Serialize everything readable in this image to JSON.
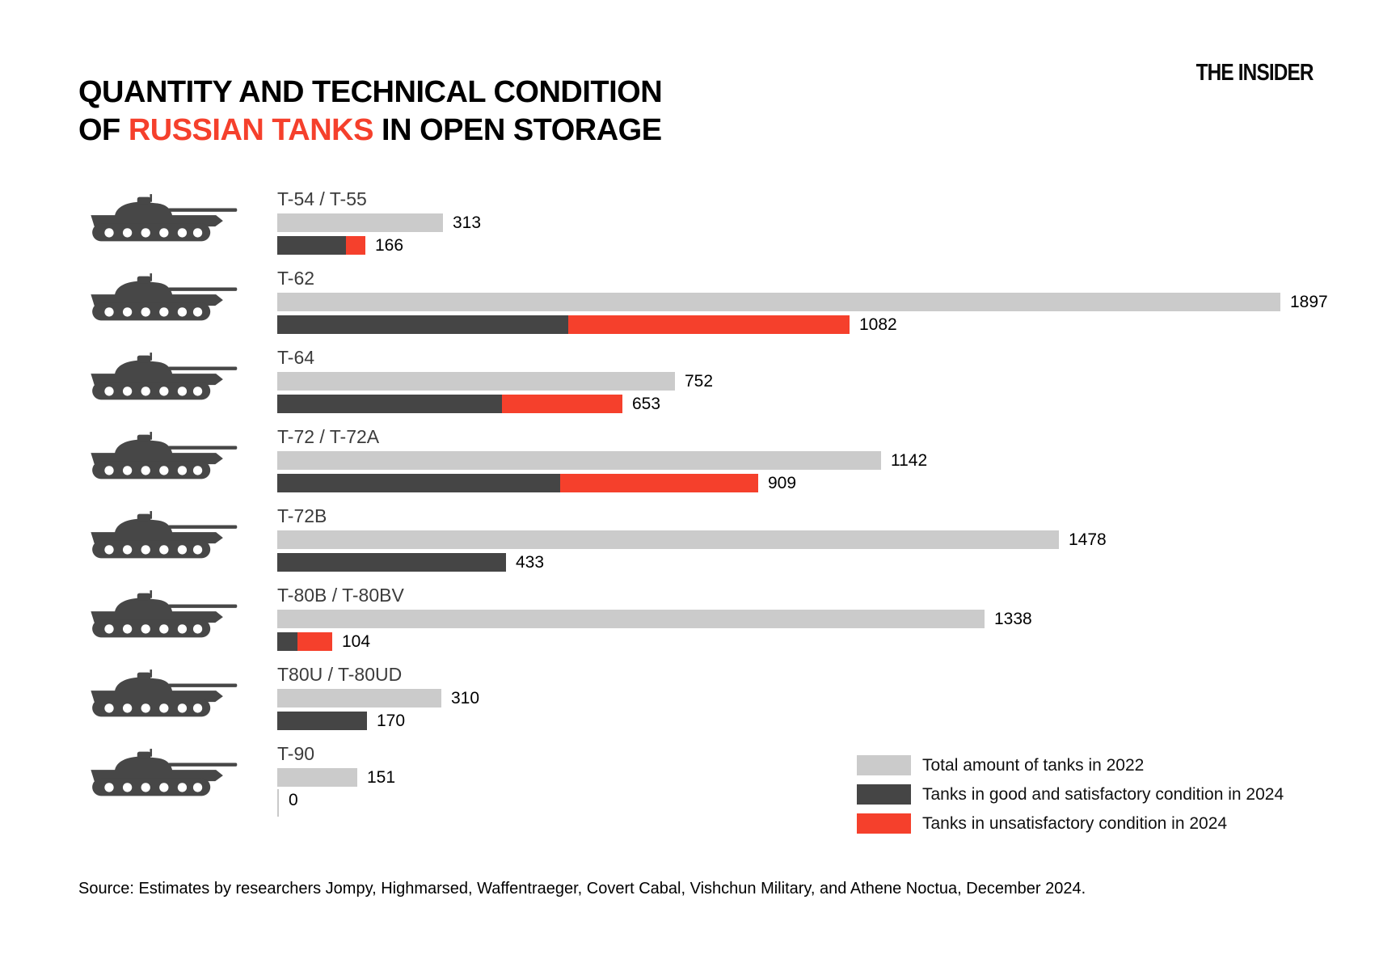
{
  "title": {
    "line1": "QUANTITY AND TECHNICAL CONDITION",
    "line2_prefix": "OF ",
    "line2_red": "RUSSIAN TANKS",
    "line2_suffix": " IN OPEN STORAGE"
  },
  "logo": "THE INSIDER",
  "colors": {
    "total_2022": "#cbcbcb",
    "good_2024": "#454545",
    "unsat_2024": "#f5402c",
    "accent_red": "#f5402c",
    "tank_icon": "#474747"
  },
  "legend": [
    {
      "label": "Total amount of tanks in 2022"
    },
    {
      "label": "Tanks in good and satisfactory condition in 2024"
    },
    {
      "label": "Tanks in unsatisfactory condition in 2024"
    }
  ],
  "source": "Source: Estimates by researchers Jompy, Highmarsed, Waffentraeger, Covert Cabal, Vishchun Military, and Athene Noctua, December 2024.",
  "rows": [
    {
      "label": "T-54 / T-55",
      "total_2022": 313,
      "total_2024": 166,
      "good_2024_est": 130,
      "unsat_2024_est": 36
    },
    {
      "label": "T-62",
      "total_2022": 1897,
      "total_2024": 1082,
      "good_2024_est": 550,
      "unsat_2024_est": 532
    },
    {
      "label": "T-64",
      "total_2022": 752,
      "total_2024": 653,
      "good_2024_est": 425,
      "unsat_2024_est": 228
    },
    {
      "label": "T-72 / T-72A",
      "total_2022": 1142,
      "total_2024": 909,
      "good_2024_est": 535,
      "unsat_2024_est": 374
    },
    {
      "label": "T-72B",
      "total_2022": 1478,
      "total_2024": 433,
      "good_2024_est": 433,
      "unsat_2024_est": 0
    },
    {
      "label": "T-80B / T-80BV",
      "total_2022": 1338,
      "total_2024": 104,
      "good_2024_est": 38,
      "unsat_2024_est": 66
    },
    {
      "label": "T80U / T-80UD",
      "total_2022": 310,
      "total_2024": 170,
      "good_2024_est": 170,
      "unsat_2024_est": 0
    },
    {
      "label": "T-90",
      "total_2022": 151,
      "total_2024": 0,
      "good_2024_est": 0,
      "unsat_2024_est": 0
    }
  ],
  "chart_data": {
    "type": "bar",
    "orientation": "horizontal",
    "title": "Quantity and technical condition of Russian tanks in open storage",
    "categories": [
      "T-54 / T-55",
      "T-62",
      "T-64",
      "T-72 / T-72A",
      "T-72B",
      "T-80B / T-80BV",
      "T80U / T-80UD",
      "T-90"
    ],
    "series": [
      {
        "name": "Total amount of tanks in 2022",
        "values": [
          313,
          1897,
          752,
          1142,
          1478,
          1338,
          310,
          151
        ]
      },
      {
        "name": "Tanks in good and satisfactory condition in 2024 (estimated from bar lengths)",
        "values": [
          130,
          550,
          425,
          535,
          433,
          38,
          170,
          0
        ]
      },
      {
        "name": "Tanks in unsatisfactory condition in 2024 (estimated from bar lengths)",
        "values": [
          36,
          532,
          228,
          374,
          0,
          66,
          0,
          0
        ]
      }
    ],
    "labels_2024_total": [
      166,
      1082,
      653,
      909,
      433,
      104,
      170,
      0
    ],
    "xlim": [
      0,
      1897
    ],
    "grid": false,
    "legend_position": "bottom-right",
    "value_labels": "end-of-bar"
  }
}
